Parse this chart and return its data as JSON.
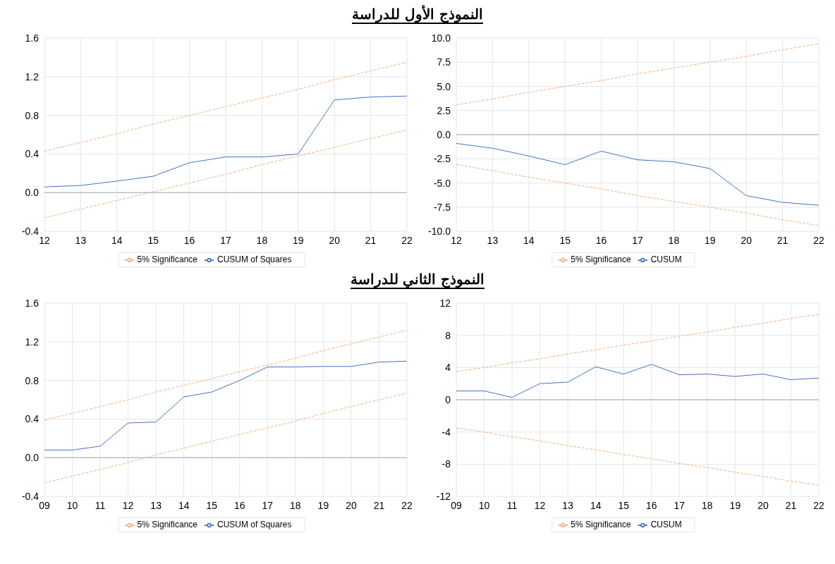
{
  "chart_data": [
    {
      "type": "line",
      "title": "النموذج الأول للدراسة",
      "categories": [
        "12",
        "13",
        "14",
        "15",
        "16",
        "17",
        "18",
        "19",
        "20",
        "21",
        "22"
      ],
      "ylim": [
        -0.4,
        1.6
      ],
      "yticks": [
        -0.4,
        {
          "value": 0,
          "label": "0.0"
        },
        0.4,
        0.8,
        1.2,
        1.6
      ],
      "grid": true,
      "legend": "bottom",
      "ref_lines": [
        {
          "axis": "y",
          "value": 0,
          "color": "#bfbfbf"
        }
      ],
      "series": [
        {
          "name": "CUSUM of Squares",
          "color": "#4472c4",
          "line_style": "solid",
          "values": [
            0.06,
            0.075,
            0.12,
            0.17,
            0.31,
            0.37,
            0.37,
            0.4,
            0.96,
            0.99,
            1.0
          ]
        },
        {
          "name": "5% Significance",
          "color": "#f4b183",
          "line_style": "dashed",
          "values": [
            0.43,
            0.52,
            0.61,
            0.71,
            0.8,
            0.89,
            0.98,
            1.07,
            1.17,
            1.26,
            1.35
          ]
        },
        {
          "color": "#f4b183",
          "line_style": "dashed",
          "values": [
            -0.26,
            -0.17,
            -0.08,
            0.01,
            0.1,
            0.19,
            0.29,
            0.38,
            0.47,
            0.56,
            0.65
          ]
        }
      ]
    },
    {
      "type": "line",
      "categories": [
        "12",
        "13",
        "14",
        "15",
        "16",
        "17",
        "18",
        "19",
        "20",
        "21",
        "22"
      ],
      "ylim": [
        -10,
        10
      ],
      "yticks": [
        {
          "value": -10,
          "label": "-10.0"
        },
        -7.5,
        {
          "value": -5,
          "label": "-5.0"
        },
        -2.5,
        {
          "value": 0,
          "label": "0.0"
        },
        2.5,
        {
          "value": 5,
          "label": "5.0"
        },
        7.5,
        {
          "value": 10,
          "label": "10.0"
        }
      ],
      "grid": true,
      "legend": "bottom",
      "ref_lines": [
        {
          "axis": "y",
          "value": 0,
          "color": "#bfbfbf"
        }
      ],
      "series": [
        {
          "name": "CUSUM",
          "color": "#4472c4",
          "line_style": "solid",
          "values": [
            -0.9,
            -1.4,
            -2.2,
            -3.1,
            -1.7,
            -2.6,
            -2.8,
            -3.5,
            -6.3,
            -7.0,
            -7.3
          ]
        },
        {
          "name": "5% Significance",
          "color": "#f4b183",
          "line_style": "dashed",
          "values": [
            3.1,
            3.7,
            4.4,
            5.0,
            5.6,
            6.3,
            6.9,
            7.5,
            8.1,
            8.8,
            9.4
          ]
        },
        {
          "color": "#f4b183",
          "line_style": "dashed",
          "values": [
            -3.1,
            -3.7,
            -4.4,
            -5.0,
            -5.6,
            -6.3,
            -6.9,
            -7.5,
            -8.1,
            -8.8,
            -9.4
          ]
        }
      ]
    },
    {
      "type": "line",
      "title": "النموذج الثاني للدراسة",
      "categories": [
        "09",
        "10",
        "11",
        "12",
        "13",
        "14",
        "15",
        "16",
        "17",
        "18",
        "19",
        "20",
        "21",
        "22"
      ],
      "ylim": [
        -0.4,
        1.6
      ],
      "yticks": [
        -0.4,
        {
          "value": 0,
          "label": "0.0"
        },
        0.4,
        0.8,
        1.2,
        1.6
      ],
      "grid": true,
      "legend": "bottom",
      "ref_lines": [
        {
          "axis": "y",
          "value": 0,
          "color": "#bfbfbf"
        }
      ],
      "series": [
        {
          "name": "CUSUM of Squares",
          "color": "#4472c4",
          "line_style": "solid",
          "values": [
            0.08,
            0.08,
            0.12,
            0.36,
            0.37,
            0.63,
            0.68,
            0.8,
            0.94,
            0.94,
            0.945,
            0.945,
            0.99,
            1.0
          ]
        },
        {
          "name": "5% Significance",
          "color": "#f4b183",
          "line_style": "dashed",
          "values": [
            0.39,
            0.46,
            0.53,
            0.6,
            0.68,
            0.75,
            0.82,
            0.89,
            0.96,
            1.03,
            1.11,
            1.18,
            1.25,
            1.32
          ]
        },
        {
          "color": "#f4b183",
          "line_style": "dashed",
          "values": [
            -0.26,
            -0.19,
            -0.12,
            -0.05,
            0.03,
            0.1,
            0.17,
            0.24,
            0.31,
            0.38,
            0.46,
            0.53,
            0.6,
            0.67
          ]
        }
      ]
    },
    {
      "type": "line",
      "categories": [
        "09",
        "10",
        "11",
        "12",
        "13",
        "14",
        "15",
        "16",
        "17",
        "18",
        "19",
        "20",
        "21",
        "22"
      ],
      "ylim": [
        -12,
        12
      ],
      "yticks": [
        -12,
        -8,
        -4,
        0,
        4,
        8,
        12
      ],
      "grid": true,
      "legend": "bottom",
      "ref_lines": [
        {
          "axis": "y",
          "value": 0,
          "color": "#bfbfbf"
        }
      ],
      "series": [
        {
          "name": "CUSUM",
          "color": "#4472c4",
          "line_style": "solid",
          "values": [
            1.1,
            1.1,
            0.3,
            2.0,
            2.2,
            4.1,
            3.2,
            4.4,
            3.1,
            3.2,
            2.9,
            3.2,
            2.5,
            2.7
          ]
        },
        {
          "name": "5% Significance",
          "color": "#f4b183",
          "line_style": "dashed",
          "values": [
            3.5,
            4.0,
            4.6,
            5.1,
            5.7,
            6.2,
            6.8,
            7.3,
            7.9,
            8.4,
            9.0,
            9.5,
            10.1,
            10.6
          ]
        },
        {
          "color": "#f4b183",
          "line_style": "dashed",
          "values": [
            -3.5,
            -4.0,
            -4.6,
            -5.1,
            -5.7,
            -6.2,
            -6.8,
            -7.3,
            -7.9,
            -8.4,
            -9.0,
            -9.5,
            -10.1,
            -10.6
          ]
        }
      ]
    }
  ]
}
